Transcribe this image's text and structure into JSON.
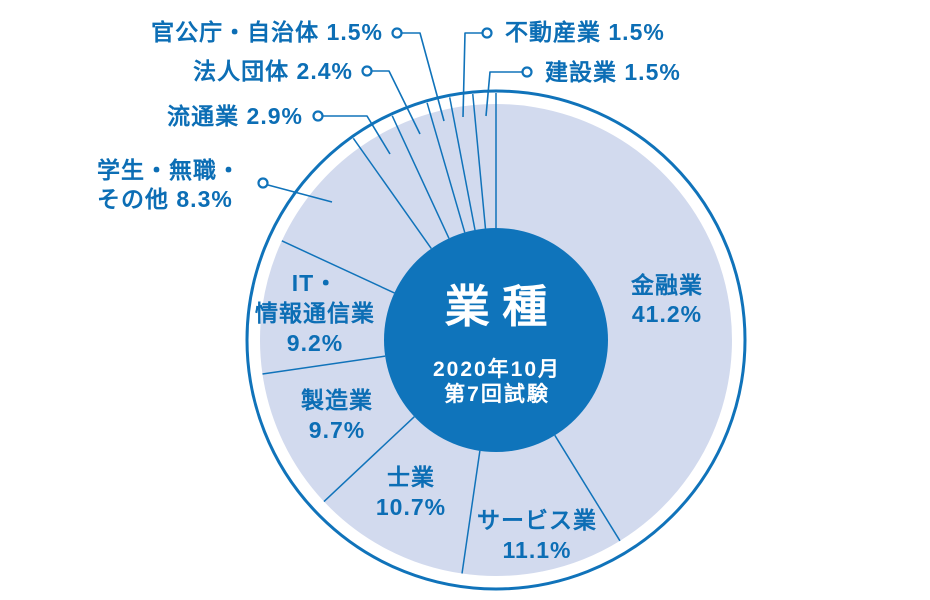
{
  "chart_data": {
    "type": "pie",
    "title": "業種",
    "center": {
      "title": "業種",
      "subtitle_line1": "2020年10月",
      "subtitle_line2": "第7回試験"
    },
    "start_angle_deg": 0,
    "direction": "clockwise",
    "unit": "%",
    "slices": [
      {
        "label": "金融業",
        "value": 41.2,
        "label_position": "inside",
        "label_lines": [
          "金融業",
          "41.2%"
        ]
      },
      {
        "label": "サービス業",
        "value": 11.1,
        "label_position": "inside",
        "label_lines": [
          "サービス業",
          "11.1%"
        ]
      },
      {
        "label": "士業",
        "value": 10.7,
        "label_position": "inside",
        "label_lines": [
          "士業",
          "10.7%"
        ]
      },
      {
        "label": "製造業",
        "value": 9.7,
        "label_position": "inside",
        "label_lines": [
          "製造業",
          "9.7%"
        ]
      },
      {
        "label": "IT・情報通信業",
        "value": 9.2,
        "label_position": "inside",
        "label_lines": [
          "IT・",
          "情報通信業",
          "9.2%"
        ]
      },
      {
        "label": "学生・無職・その他",
        "value": 8.3,
        "label_position": "outside",
        "label_lines": [
          "学生・無職・",
          "その他 8.3%"
        ]
      },
      {
        "label": "流通業",
        "value": 2.9,
        "label_position": "outside",
        "label_lines": [
          "流通業 2.9%"
        ]
      },
      {
        "label": "法人団体",
        "value": 2.4,
        "label_position": "outside",
        "label_lines": [
          "法人団体 2.4%"
        ]
      },
      {
        "label": "官公庁・自治体",
        "value": 1.5,
        "label_position": "outside",
        "label_lines": [
          "官公庁・自治体 1.5%"
        ]
      },
      {
        "label": "不動産業",
        "value": 1.5,
        "label_position": "outside",
        "label_lines": [
          "不動産業 1.5%"
        ]
      },
      {
        "label": "建設業",
        "value": 1.5,
        "label_position": "outside",
        "label_lines": [
          "建設業 1.5%"
        ]
      }
    ],
    "colors": {
      "outline_blue": "#1073ba",
      "slice_fill": "#d2daee",
      "center_circle": "#0f74bb",
      "label_text": "#0c6eb5",
      "center_text": "#ffffff",
      "background": "#ffffff"
    },
    "legend": "none",
    "grid": false
  }
}
